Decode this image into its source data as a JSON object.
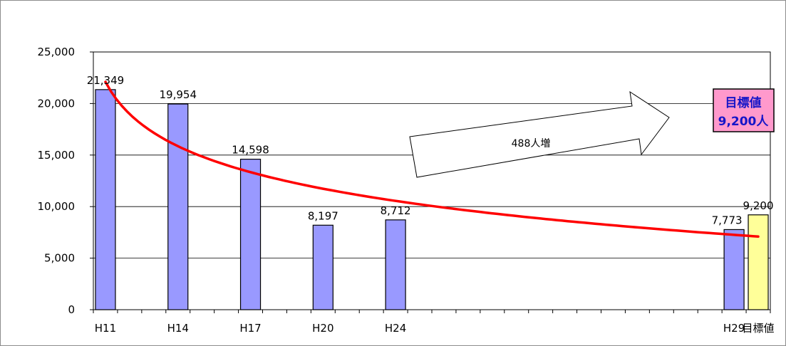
{
  "chart_data": {
    "type": "bar",
    "categories": [
      "H11",
      "H14",
      "H17",
      "H20",
      "H24",
      "H29",
      "目標値"
    ],
    "values": [
      21349,
      19954,
      14598,
      8197,
      8712,
      7773,
      9200
    ],
    "data_labels": [
      "21,349",
      "19,954",
      "14,598",
      "8,197",
      "8,712",
      "7,773",
      "9,200"
    ],
    "category_positions": [
      0,
      3,
      6,
      9,
      12,
      26,
      27
    ],
    "slot_count": 28,
    "ylim": [
      0,
      25000
    ],
    "y_ticks": [
      0,
      5000,
      10000,
      15000,
      20000,
      25000
    ],
    "y_tick_labels": [
      "0",
      "5,000",
      "10,000",
      "15,000",
      "20,000",
      "25,000"
    ],
    "grid": true,
    "legend": "none",
    "title": "",
    "xlabel": "",
    "ylabel": "",
    "trendline": {
      "type": "logarithmic",
      "color": "#ff0000",
      "start_value": 22100,
      "end_value": 7100
    },
    "callout_arrow": {
      "text": "488人増"
    },
    "target_box": {
      "line1": "目標値",
      "line2": "9,200人"
    },
    "colors": {
      "bar": "#9999ff",
      "target_bar": "#ffff99",
      "trend": "#ff0000",
      "target_box_fill": "#ff99cc",
      "target_text": "#1515c8",
      "grid": "#000000"
    }
  }
}
